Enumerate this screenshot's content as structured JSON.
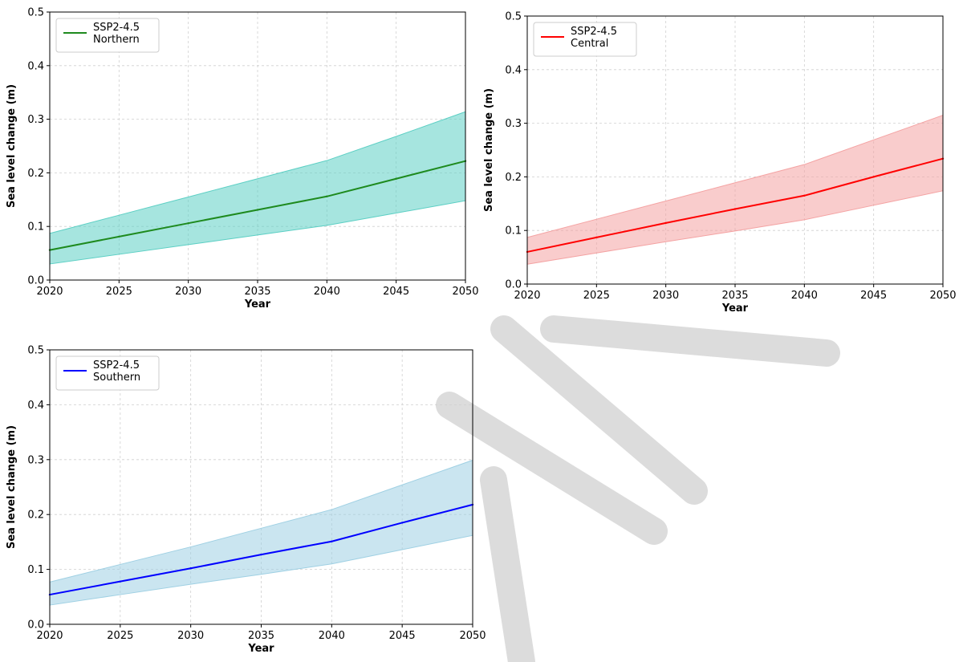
{
  "chart_data": [
    {
      "type": "line",
      "x": [
        2020,
        2025,
        2030,
        2035,
        2040,
        2045,
        2050
      ],
      "xlabel": "Year",
      "ylabel": "Sea level change (m)",
      "xlim": [
        2020,
        2050
      ],
      "ylim": [
        0.0,
        0.5
      ],
      "x_ticks": [
        "2020",
        "2025",
        "2030",
        "2035",
        "2040",
        "2045",
        "2050"
      ],
      "y_ticks": [
        "0.0",
        "0.1",
        "0.2",
        "0.3",
        "0.4",
        "0.5"
      ],
      "grid": true,
      "legend_position": "top-left",
      "legend_lines": [
        "SSP2-4.5",
        "Northern"
      ],
      "series": [
        {
          "name": "SSP2-4.5 Northern",
          "color": "#1e8a1e",
          "band_color": "#5ccfc4",
          "values": [
            0.056,
            0.081,
            0.106,
            0.131,
            0.156,
            0.189,
            0.222
          ],
          "lower": [
            0.03,
            0.048,
            0.066,
            0.084,
            0.102,
            0.125,
            0.148
          ],
          "upper": [
            0.087,
            0.121,
            0.155,
            0.189,
            0.223,
            0.268,
            0.314
          ]
        }
      ]
    },
    {
      "type": "line",
      "x": [
        2020,
        2025,
        2030,
        2035,
        2040,
        2045,
        2050
      ],
      "xlabel": "Year",
      "ylabel": "Sea level change (m)",
      "xlim": [
        2020,
        2050
      ],
      "ylim": [
        0.0,
        0.5
      ],
      "x_ticks": [
        "2020",
        "2025",
        "2030",
        "2035",
        "2040",
        "2045",
        "2050"
      ],
      "y_ticks": [
        "0.0",
        "0.1",
        "0.2",
        "0.3",
        "0.4",
        "0.5"
      ],
      "grid": true,
      "legend_position": "top-left",
      "legend_lines": [
        "SSP2-4.5",
        "Central"
      ],
      "series": [
        {
          "name": "SSP2-4.5 Central",
          "color": "#ff0000",
          "band_color": "#f4a3a3",
          "values": [
            0.06,
            0.087,
            0.114,
            0.14,
            0.165,
            0.2,
            0.234
          ],
          "lower": [
            0.037,
            0.058,
            0.079,
            0.099,
            0.12,
            0.147,
            0.174
          ],
          "upper": [
            0.087,
            0.121,
            0.155,
            0.189,
            0.223,
            0.269,
            0.315
          ]
        }
      ]
    },
    {
      "type": "line",
      "x": [
        2020,
        2025,
        2030,
        2035,
        2040,
        2045,
        2050
      ],
      "xlabel": "Year",
      "ylabel": "Sea level change (m)",
      "xlim": [
        2020,
        2050
      ],
      "ylim": [
        0.0,
        0.5
      ],
      "x_ticks": [
        "2020",
        "2025",
        "2030",
        "2035",
        "2040",
        "2045",
        "2050"
      ],
      "y_ticks": [
        "0.0",
        "0.1",
        "0.2",
        "0.3",
        "0.4",
        "0.5"
      ],
      "grid": true,
      "legend_position": "top-left",
      "legend_lines": [
        "SSP2-4.5",
        "Southern"
      ],
      "series": [
        {
          "name": "SSP2-4.5 Southern",
          "color": "#0000ff",
          "band_color": "#9fd0e3",
          "values": [
            0.054,
            0.078,
            0.102,
            0.127,
            0.151,
            0.185,
            0.218
          ],
          "lower": [
            0.035,
            0.054,
            0.073,
            0.091,
            0.11,
            0.136,
            0.162
          ],
          "upper": [
            0.077,
            0.109,
            0.141,
            0.175,
            0.209,
            0.254,
            0.299
          ]
        }
      ]
    }
  ],
  "watermark": {
    "color": "#d9d9d9"
  }
}
